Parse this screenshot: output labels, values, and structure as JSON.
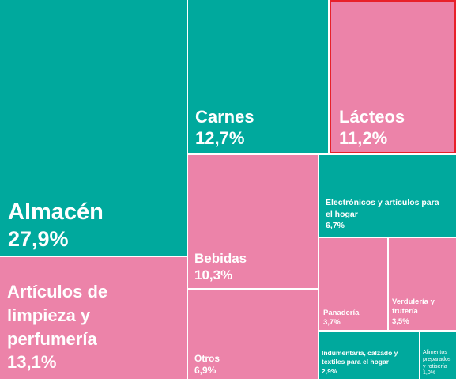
{
  "colors": {
    "teal": "#00a99d",
    "pink": "#ec83a9",
    "highlight": "#e8202a"
  },
  "chart_data": {
    "type": "treemap",
    "unit": "%",
    "highlighted": "Lácteos",
    "items": [
      {
        "name": "Almacén",
        "value_label": "27,9%",
        "value": 27.9,
        "color": "teal"
      },
      {
        "name": "Artículos de limpieza y perfumería",
        "value_label": "13,1%",
        "value": 13.1,
        "color": "pink"
      },
      {
        "name": "Carnes",
        "value_label": "12,7%",
        "value": 12.7,
        "color": "teal"
      },
      {
        "name": "Lácteos",
        "value_label": "11,2%",
        "value": 11.2,
        "color": "pink"
      },
      {
        "name": "Bebidas",
        "value_label": "10,3%",
        "value": 10.3,
        "color": "pink"
      },
      {
        "name": "Otros",
        "value_label": "6,9%",
        "value": 6.9,
        "color": "pink"
      },
      {
        "name": "Electrónicos y artículos para el hogar",
        "value_label": "6,7%",
        "value": 6.7,
        "color": "teal"
      },
      {
        "name": "Panadería",
        "value_label": "3,7%",
        "value": 3.7,
        "color": "pink"
      },
      {
        "name": "Verdulería y frutería",
        "value_label": "3,5%",
        "value": 3.5,
        "color": "pink"
      },
      {
        "name": "Indumentaria, calzado y textiles para el hogar",
        "value_label": "2,9%",
        "value": 2.9,
        "color": "teal"
      },
      {
        "name": "Alimentos preparados y rotisería",
        "value_label": "1,0%",
        "value": 1.0,
        "color": "teal"
      }
    ]
  }
}
